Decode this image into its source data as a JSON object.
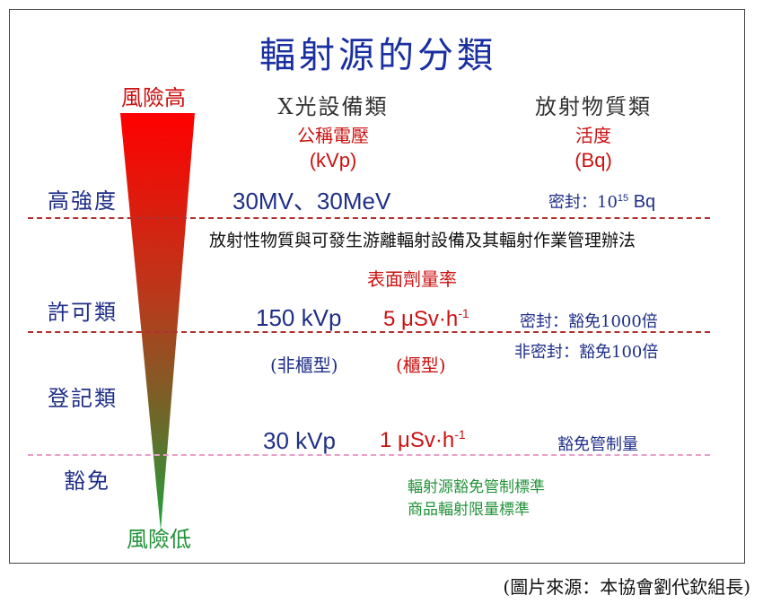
{
  "title": "輻射源的分類",
  "risk": {
    "high": "風險高",
    "low": "風險低"
  },
  "levels": {
    "high_intensity": "高強度",
    "permit": "許可類",
    "registration": "登記類",
    "exempt": "豁免"
  },
  "columns": {
    "xray": {
      "header": "X光設備類",
      "sub": "公稱電壓",
      "unit": "(kVp)"
    },
    "radioactive": {
      "header": "放射物質類",
      "sub": "活度",
      "unit": "(Bq)"
    }
  },
  "high_intensity": {
    "xray_value": "30MV、30MeV",
    "sealed_prefix": "密封：10",
    "sealed_exp": "15",
    "sealed_unit": " Bq"
  },
  "regulation": "放射性物質與可發生游離輻射設備及其輻射作業管理辦法",
  "surface_dose_label": "表面劑量率",
  "permit": {
    "xray_value": "150 kVp",
    "dose_prefix": "5 μSv·h",
    "dose_exp": "-1",
    "sealed": "密封：豁免1000倍",
    "unsealed": "非密封：豁免100倍"
  },
  "cabinet": {
    "non_cabinet": "(非櫃型)",
    "cabinet": "(櫃型)"
  },
  "registration": {
    "xray_value": "30 kVp",
    "dose_prefix": "1 μSv·h",
    "dose_exp": "-1",
    "exempt_control": "豁免管制量"
  },
  "exempt_standards": [
    "輻射源豁免管制標準",
    "商品輻射限量標準"
  ],
  "source_credit": "(圖片來源：本協會劉代欽組長)",
  "colors": {
    "title": "#1a2fa0",
    "navy": "#1f2f88",
    "red": "#cc1111",
    "green": "#22923a",
    "funnel_top": "#ff0000",
    "funnel_bottom": "#1fa33d",
    "dash_red": "#b03030",
    "dash_pink": "#e8a0c8"
  }
}
